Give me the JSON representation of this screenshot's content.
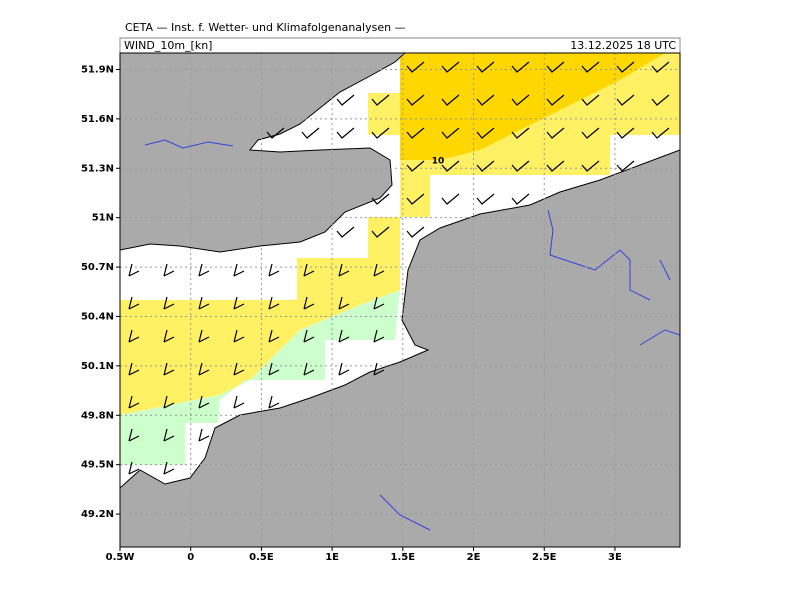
{
  "header": {
    "title": "CETA — Inst. f. Wetter- und Klimafolgenanalysen —",
    "field": "WIND_10m_[kn]",
    "time": "13.12.2025 18 UTC"
  },
  "map": {
    "lonlim": [
      -0.5,
      3.46
    ],
    "latlim": [
      49.0,
      52.0
    ],
    "lon_ticks": [
      {
        "value": -0.5,
        "label": "0.5W"
      },
      0,
      {
        "value": 0.5,
        "label": "0.5E"
      },
      {
        "value": 1,
        "label": "1E"
      },
      {
        "value": 1.5,
        "label": "1.5E"
      },
      {
        "value": 2,
        "label": "2E"
      },
      {
        "value": 2.5,
        "label": "2.5E"
      },
      {
        "value": 3,
        "label": "3E"
      }
    ],
    "lat_ticks": [
      {
        "value": 49.2,
        "label": "49.2N"
      },
      {
        "value": 49.5,
        "label": "49.5N"
      },
      {
        "value": 49.8,
        "label": "49.8N"
      },
      {
        "value": 50.1,
        "label": "50.1N"
      },
      {
        "value": 50.4,
        "label": "50.4N"
      },
      {
        "value": 50.7,
        "label": "50.7N"
      },
      {
        "value": 51,
        "label": "51N"
      },
      {
        "value": 51.3,
        "label": "51.3N"
      },
      {
        "value": 51.6,
        "label": "51.6N"
      },
      {
        "value": 51.9,
        "label": "51.9N"
      }
    ],
    "contour_label": "10"
  }
}
